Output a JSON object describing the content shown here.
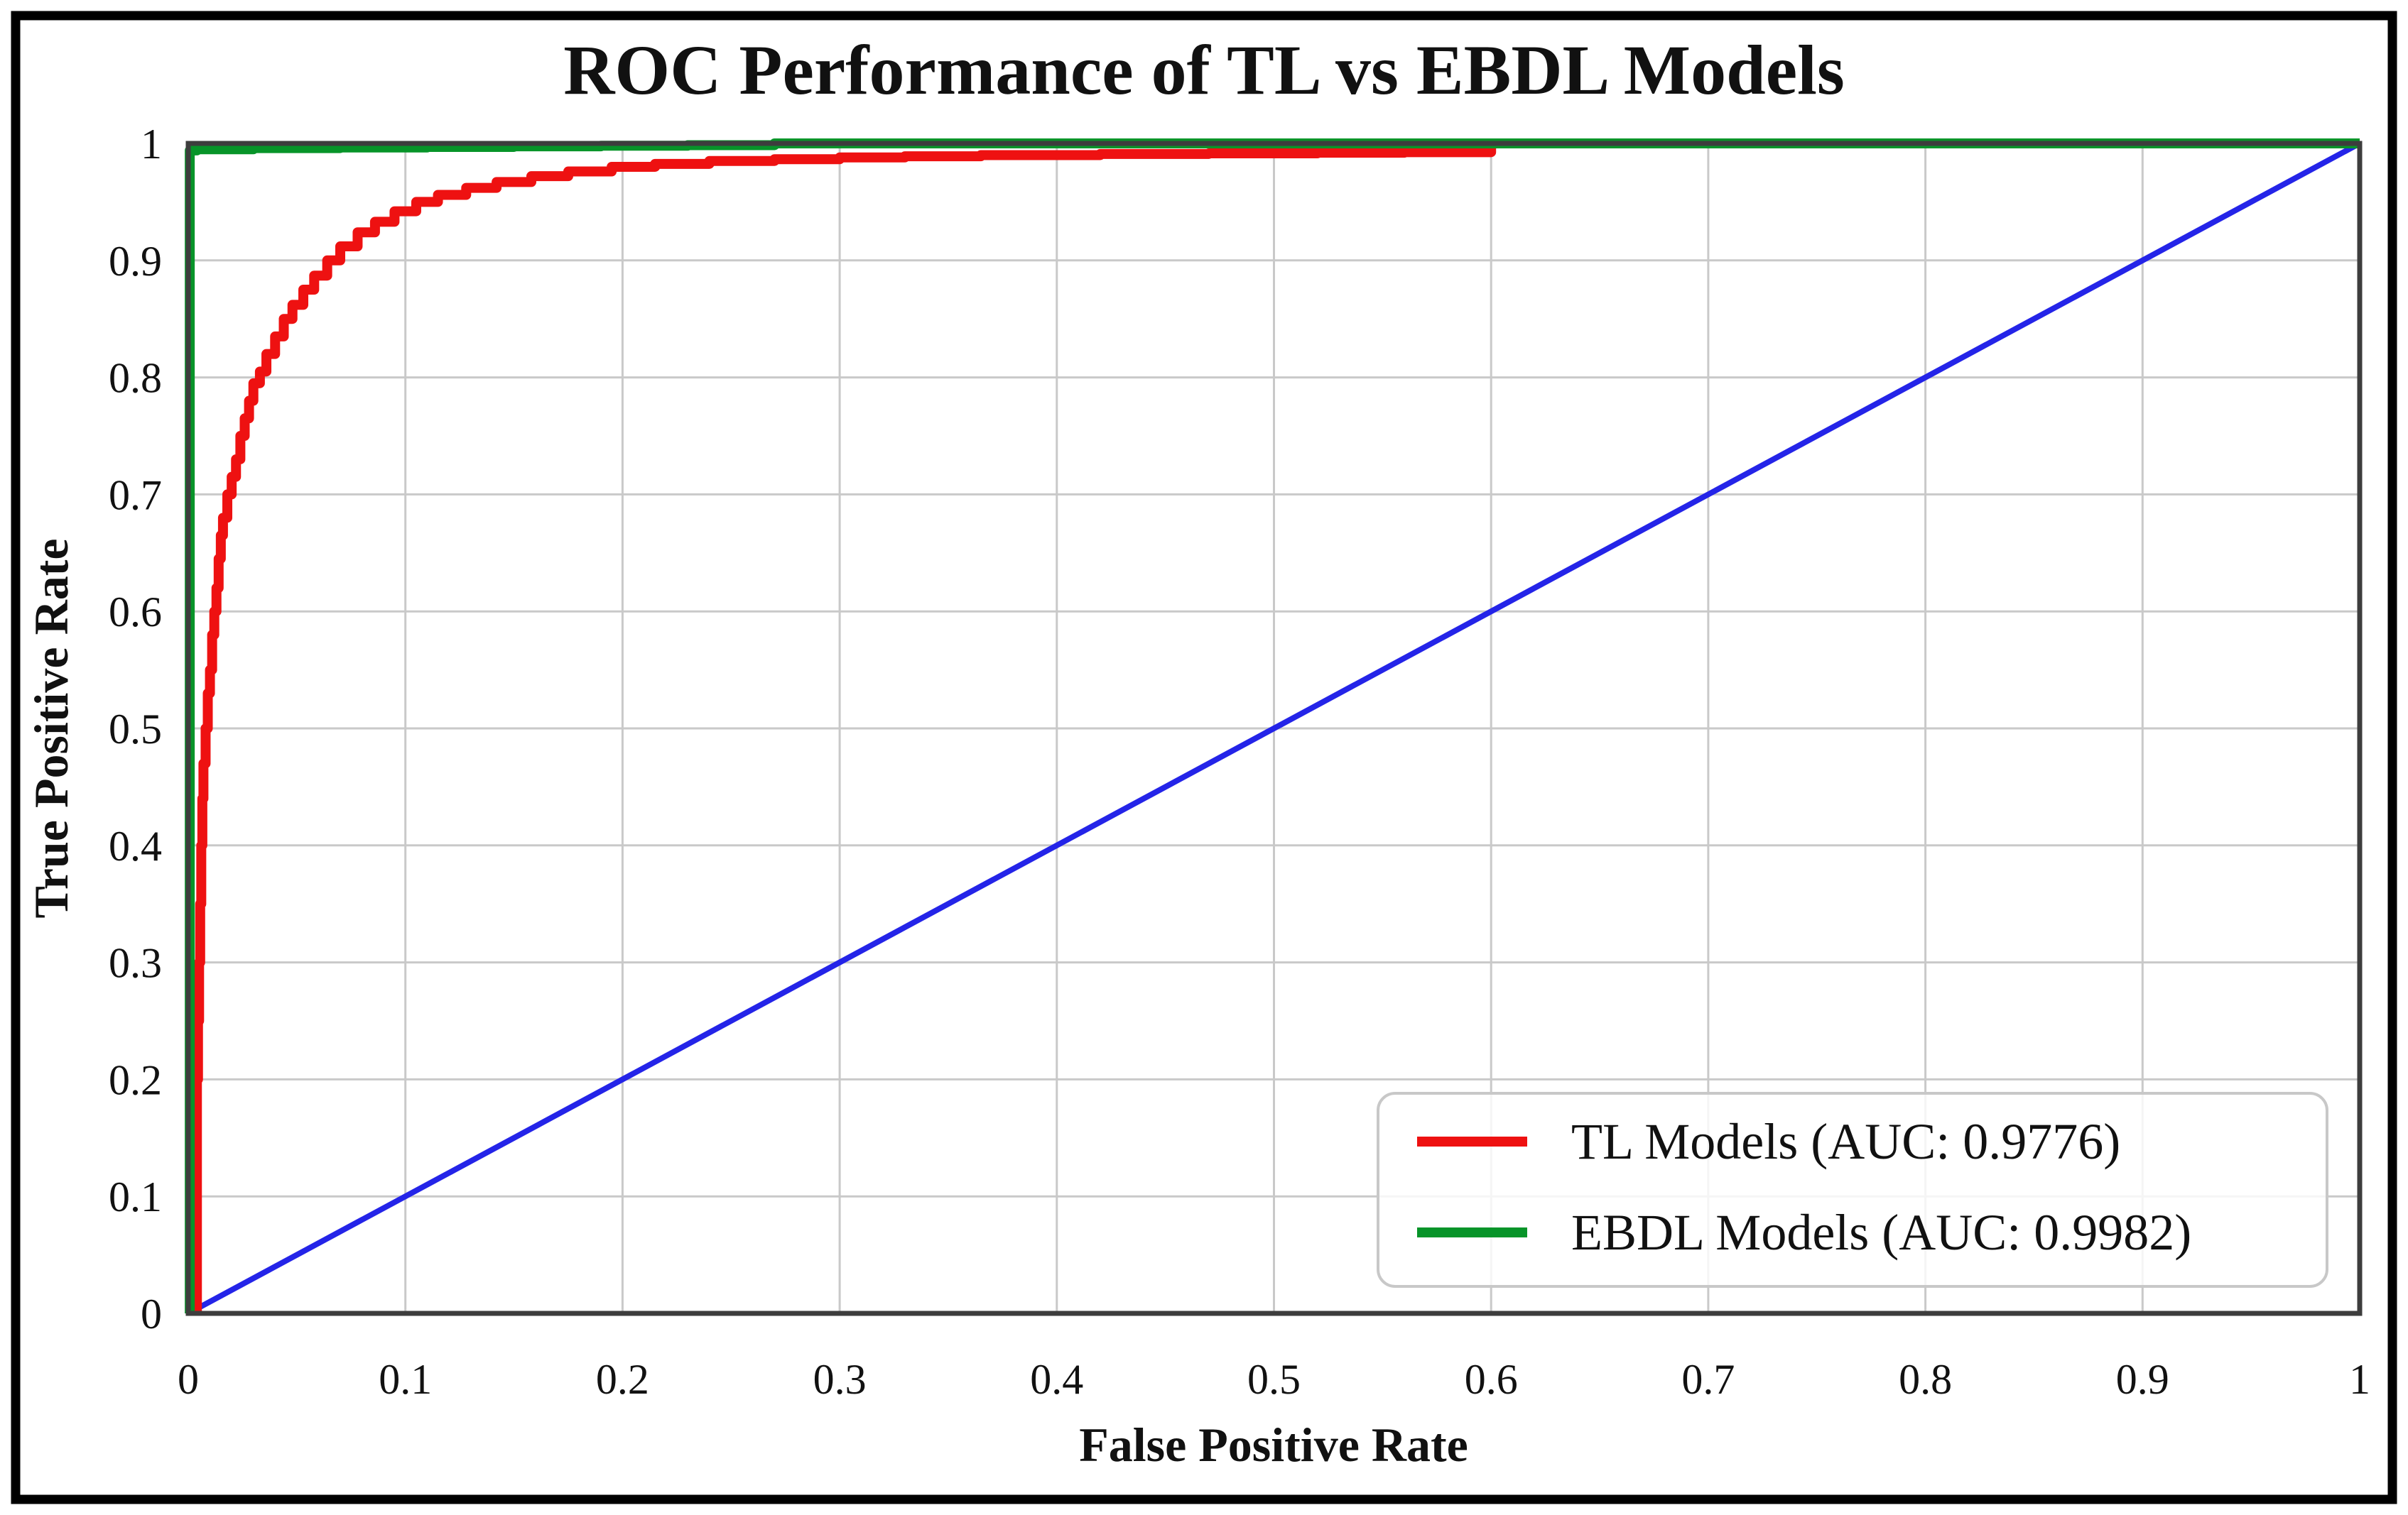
{
  "figure_title": "ROC Performance of TL vs EBDL Models",
  "chart_data": {
    "type": "line",
    "title": "ROC Performance of TL vs EBDL Models",
    "xlabel": "False Positive Rate",
    "ylabel": "True Positive Rate",
    "xlim": [
      0,
      1
    ],
    "ylim": [
      0,
      1
    ],
    "grid": true,
    "grid_color": "#c9c9c9",
    "spine_color": "#3d3d3d",
    "outer_border_color": "#000000",
    "background": "#ffffff",
    "x_ticks": [
      "0",
      "0.1",
      "0.2",
      "0.3",
      "0.4",
      "0.5",
      "0.6",
      "0.7",
      "0.8",
      "0.9",
      "1"
    ],
    "y_ticks": [
      "0",
      "0.1",
      "0.2",
      "0.3",
      "0.4",
      "0.5",
      "0.6",
      "0.7",
      "0.8",
      "0.9",
      "1"
    ],
    "legend_position": "lower right",
    "series": [
      {
        "name": "TL Models (AUC: 0.9776)",
        "auc": 0.9776,
        "color": "#ee1111",
        "style": "step",
        "in_legend": true,
        "points": [
          [
            0.004,
            0
          ],
          [
            0.004,
            0.2
          ],
          [
            0.0045,
            0.25
          ],
          [
            0.005,
            0.3
          ],
          [
            0.0055,
            0.35
          ],
          [
            0.006,
            0.4
          ],
          [
            0.0065,
            0.44
          ],
          [
            0.007,
            0.47
          ],
          [
            0.008,
            0.5
          ],
          [
            0.009,
            0.53
          ],
          [
            0.01,
            0.55
          ],
          [
            0.011,
            0.58
          ],
          [
            0.012,
            0.6
          ],
          [
            0.013,
            0.62
          ],
          [
            0.014,
            0.645
          ],
          [
            0.015,
            0.665
          ],
          [
            0.016,
            0.68
          ],
          [
            0.018,
            0.7
          ],
          [
            0.02,
            0.715
          ],
          [
            0.022,
            0.73
          ],
          [
            0.024,
            0.75
          ],
          [
            0.026,
            0.765
          ],
          [
            0.028,
            0.78
          ],
          [
            0.03,
            0.795
          ],
          [
            0.033,
            0.805
          ],
          [
            0.036,
            0.82
          ],
          [
            0.04,
            0.835
          ],
          [
            0.044,
            0.85
          ],
          [
            0.048,
            0.862
          ],
          [
            0.053,
            0.875
          ],
          [
            0.058,
            0.887
          ],
          [
            0.064,
            0.9
          ],
          [
            0.07,
            0.912
          ],
          [
            0.078,
            0.924
          ],
          [
            0.086,
            0.933
          ],
          [
            0.095,
            0.942
          ],
          [
            0.105,
            0.95
          ],
          [
            0.115,
            0.956
          ],
          [
            0.128,
            0.962
          ],
          [
            0.142,
            0.967
          ],
          [
            0.158,
            0.972
          ],
          [
            0.175,
            0.976
          ],
          [
            0.195,
            0.98
          ],
          [
            0.215,
            0.9825
          ],
          [
            0.24,
            0.985
          ],
          [
            0.27,
            0.9865
          ],
          [
            0.3,
            0.988
          ],
          [
            0.33,
            0.989
          ],
          [
            0.365,
            0.99
          ],
          [
            0.42,
            0.991
          ],
          [
            0.47,
            0.9915
          ],
          [
            0.52,
            0.992
          ],
          [
            0.56,
            0.9925
          ],
          [
            0.6,
            1.0
          ],
          [
            1.0,
            1.0
          ]
        ]
      },
      {
        "name": "EBDL Models (AUC: 0.9982)",
        "auc": 0.9982,
        "color": "#079429",
        "style": "step",
        "in_legend": true,
        "points": [
          [
            0.0007,
            0
          ],
          [
            0.0007,
            0.994
          ],
          [
            0.004,
            0.995
          ],
          [
            0.03,
            0.996
          ],
          [
            0.07,
            0.9965
          ],
          [
            0.11,
            0.997
          ],
          [
            0.15,
            0.9975
          ],
          [
            0.19,
            0.998
          ],
          [
            0.23,
            0.9985
          ],
          [
            0.27,
            1.0
          ],
          [
            1.0,
            1.0
          ]
        ]
      },
      {
        "name": "chance-diagonal",
        "color": "#2424e8",
        "style": "line",
        "in_legend": false,
        "points": [
          [
            0,
            0
          ],
          [
            1,
            1
          ]
        ]
      }
    ]
  },
  "legend": {
    "entries": [
      {
        "label": "TL Models (AUC: 0.9776)"
      },
      {
        "label": "EBDL Models (AUC: 0.9982)"
      }
    ]
  }
}
